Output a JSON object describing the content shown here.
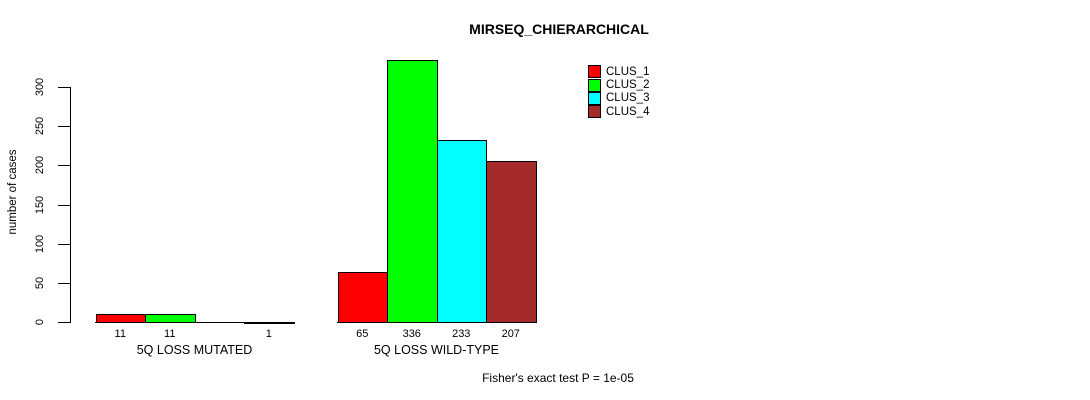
{
  "chart_data": {
    "type": "bar",
    "title": "MIRSEQ_CHIERARCHICAL",
    "ylabel": "number of cases",
    "xlabel": "",
    "categories": [
      "5Q LOSS MUTATED",
      "5Q LOSS WILD-TYPE"
    ],
    "series": [
      {
        "name": "CLUS_1",
        "color": "#FF0000",
        "values": [
          11,
          65
        ]
      },
      {
        "name": "CLUS_2",
        "color": "#00FF00",
        "values": [
          11,
          336
        ]
      },
      {
        "name": "CLUS_3",
        "color": "#00FFFF",
        "values": [
          0,
          233
        ]
      },
      {
        "name": "CLUS_4",
        "color": "#A52A2A",
        "values": [
          1,
          207
        ]
      }
    ],
    "bar_labels": [
      [
        "11",
        "11",
        "",
        "1"
      ],
      [
        "65",
        "336",
        "233",
        "207"
      ]
    ],
    "yticks": [
      0,
      50,
      100,
      150,
      200,
      250,
      300
    ],
    "ylim": [
      0,
      300
    ],
    "grid": false,
    "legend_position": "top-right",
    "annotation": "Fisher's exact test P = 1e-05",
    "colors": {
      "background": "#FFFFFF",
      "axis": "#000000",
      "text": "#000000"
    }
  }
}
